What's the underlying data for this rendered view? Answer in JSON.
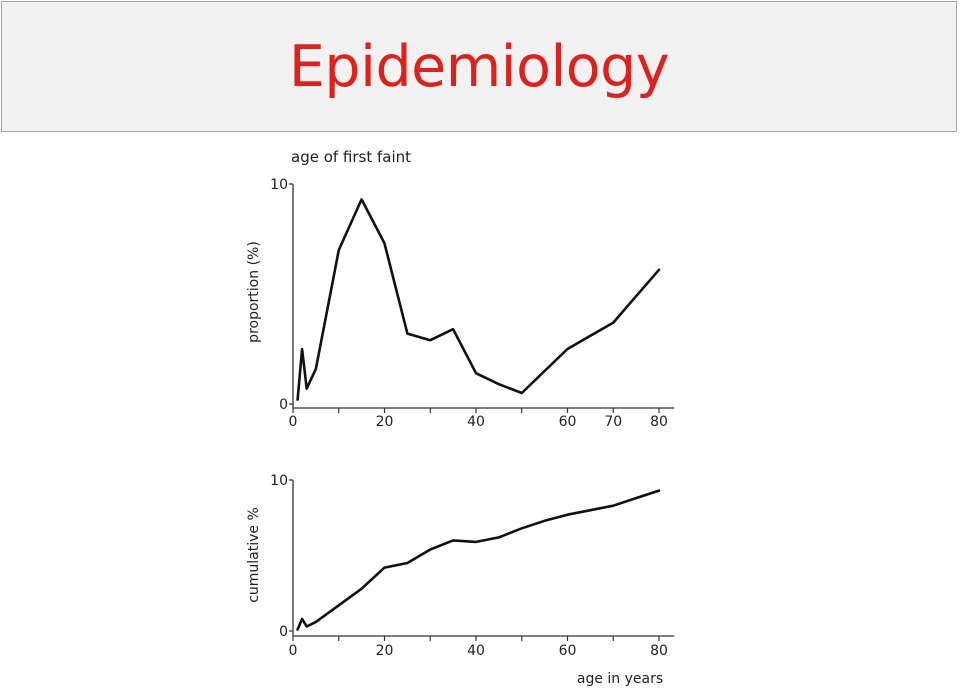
{
  "slide": {
    "title": "Epidemiology",
    "title_color": "#e0201b"
  },
  "chart_data": [
    {
      "type": "line",
      "title": "age of first faint",
      "xlabel": "",
      "ylabel": "proportion (%)",
      "xlim": [
        0,
        82
      ],
      "ylim": [
        0,
        10
      ],
      "x_ticks": [
        0,
        20,
        40,
        60,
        70,
        80
      ],
      "y_ticks": [
        0,
        10
      ],
      "grid": false,
      "series": [
        {
          "x": [
            1,
            2,
            3,
            5,
            10,
            15,
            20,
            25,
            30,
            35,
            40,
            45,
            50,
            55,
            60,
            65,
            70,
            75,
            80
          ],
          "y": [
            0.2,
            2.5,
            0.7,
            1.6,
            7.0,
            9.3,
            7.3,
            3.2,
            2.9,
            3.4,
            1.4,
            0.9,
            0.5,
            1.5,
            2.5,
            3.1,
            3.7,
            4.9,
            6.1
          ]
        }
      ]
    },
    {
      "type": "line",
      "title": "",
      "xlabel": "age in years",
      "ylabel": "cumulative %",
      "xlim": [
        0,
        82
      ],
      "ylim": [
        0,
        10
      ],
      "x_ticks": [
        0,
        20,
        40,
        60,
        80
      ],
      "y_ticks": [
        0,
        10
      ],
      "grid": false,
      "series": [
        {
          "x": [
            1,
            2,
            3,
            5,
            10,
            15,
            20,
            25,
            30,
            35,
            40,
            45,
            50,
            55,
            60,
            65,
            70,
            75,
            80
          ],
          "y": [
            0.1,
            0.8,
            0.3,
            0.6,
            1.7,
            2.8,
            4.2,
            4.5,
            5.4,
            6.0,
            5.9,
            6.2,
            6.8,
            7.3,
            7.7,
            8.0,
            8.3,
            8.8,
            9.3
          ]
        }
      ]
    }
  ]
}
